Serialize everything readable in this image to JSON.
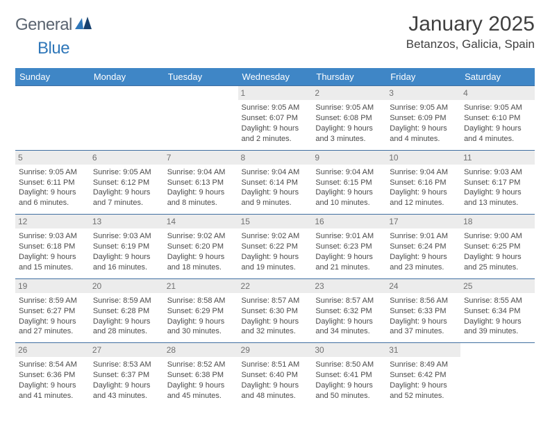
{
  "logo": {
    "text_general": "General",
    "text_blue": "Blue"
  },
  "header": {
    "month_title": "January 2025",
    "location": "Betanzos, Galicia, Spain"
  },
  "colors": {
    "header_bg": "#3f86c6",
    "header_text": "#ffffff",
    "row_border": "#3f6ea0",
    "daynum_bg": "#ececec",
    "daynum_text": "#707070",
    "body_text": "#4a4a4a",
    "logo_gray": "#5a6470",
    "logo_blue": "#2f77b9"
  },
  "daynames": [
    "Sunday",
    "Monday",
    "Tuesday",
    "Wednesday",
    "Thursday",
    "Friday",
    "Saturday"
  ],
  "weeks": [
    [
      null,
      null,
      null,
      {
        "num": "1",
        "sunrise": "Sunrise: 9:05 AM",
        "sunset": "Sunset: 6:07 PM",
        "dl1": "Daylight: 9 hours",
        "dl2": "and 2 minutes."
      },
      {
        "num": "2",
        "sunrise": "Sunrise: 9:05 AM",
        "sunset": "Sunset: 6:08 PM",
        "dl1": "Daylight: 9 hours",
        "dl2": "and 3 minutes."
      },
      {
        "num": "3",
        "sunrise": "Sunrise: 9:05 AM",
        "sunset": "Sunset: 6:09 PM",
        "dl1": "Daylight: 9 hours",
        "dl2": "and 4 minutes."
      },
      {
        "num": "4",
        "sunrise": "Sunrise: 9:05 AM",
        "sunset": "Sunset: 6:10 PM",
        "dl1": "Daylight: 9 hours",
        "dl2": "and 4 minutes."
      }
    ],
    [
      {
        "num": "5",
        "sunrise": "Sunrise: 9:05 AM",
        "sunset": "Sunset: 6:11 PM",
        "dl1": "Daylight: 9 hours",
        "dl2": "and 6 minutes."
      },
      {
        "num": "6",
        "sunrise": "Sunrise: 9:05 AM",
        "sunset": "Sunset: 6:12 PM",
        "dl1": "Daylight: 9 hours",
        "dl2": "and 7 minutes."
      },
      {
        "num": "7",
        "sunrise": "Sunrise: 9:04 AM",
        "sunset": "Sunset: 6:13 PM",
        "dl1": "Daylight: 9 hours",
        "dl2": "and 8 minutes."
      },
      {
        "num": "8",
        "sunrise": "Sunrise: 9:04 AM",
        "sunset": "Sunset: 6:14 PM",
        "dl1": "Daylight: 9 hours",
        "dl2": "and 9 minutes."
      },
      {
        "num": "9",
        "sunrise": "Sunrise: 9:04 AM",
        "sunset": "Sunset: 6:15 PM",
        "dl1": "Daylight: 9 hours",
        "dl2": "and 10 minutes."
      },
      {
        "num": "10",
        "sunrise": "Sunrise: 9:04 AM",
        "sunset": "Sunset: 6:16 PM",
        "dl1": "Daylight: 9 hours",
        "dl2": "and 12 minutes."
      },
      {
        "num": "11",
        "sunrise": "Sunrise: 9:03 AM",
        "sunset": "Sunset: 6:17 PM",
        "dl1": "Daylight: 9 hours",
        "dl2": "and 13 minutes."
      }
    ],
    [
      {
        "num": "12",
        "sunrise": "Sunrise: 9:03 AM",
        "sunset": "Sunset: 6:18 PM",
        "dl1": "Daylight: 9 hours",
        "dl2": "and 15 minutes."
      },
      {
        "num": "13",
        "sunrise": "Sunrise: 9:03 AM",
        "sunset": "Sunset: 6:19 PM",
        "dl1": "Daylight: 9 hours",
        "dl2": "and 16 minutes."
      },
      {
        "num": "14",
        "sunrise": "Sunrise: 9:02 AM",
        "sunset": "Sunset: 6:20 PM",
        "dl1": "Daylight: 9 hours",
        "dl2": "and 18 minutes."
      },
      {
        "num": "15",
        "sunrise": "Sunrise: 9:02 AM",
        "sunset": "Sunset: 6:22 PM",
        "dl1": "Daylight: 9 hours",
        "dl2": "and 19 minutes."
      },
      {
        "num": "16",
        "sunrise": "Sunrise: 9:01 AM",
        "sunset": "Sunset: 6:23 PM",
        "dl1": "Daylight: 9 hours",
        "dl2": "and 21 minutes."
      },
      {
        "num": "17",
        "sunrise": "Sunrise: 9:01 AM",
        "sunset": "Sunset: 6:24 PM",
        "dl1": "Daylight: 9 hours",
        "dl2": "and 23 minutes."
      },
      {
        "num": "18",
        "sunrise": "Sunrise: 9:00 AM",
        "sunset": "Sunset: 6:25 PM",
        "dl1": "Daylight: 9 hours",
        "dl2": "and 25 minutes."
      }
    ],
    [
      {
        "num": "19",
        "sunrise": "Sunrise: 8:59 AM",
        "sunset": "Sunset: 6:27 PM",
        "dl1": "Daylight: 9 hours",
        "dl2": "and 27 minutes."
      },
      {
        "num": "20",
        "sunrise": "Sunrise: 8:59 AM",
        "sunset": "Sunset: 6:28 PM",
        "dl1": "Daylight: 9 hours",
        "dl2": "and 28 minutes."
      },
      {
        "num": "21",
        "sunrise": "Sunrise: 8:58 AM",
        "sunset": "Sunset: 6:29 PM",
        "dl1": "Daylight: 9 hours",
        "dl2": "and 30 minutes."
      },
      {
        "num": "22",
        "sunrise": "Sunrise: 8:57 AM",
        "sunset": "Sunset: 6:30 PM",
        "dl1": "Daylight: 9 hours",
        "dl2": "and 32 minutes."
      },
      {
        "num": "23",
        "sunrise": "Sunrise: 8:57 AM",
        "sunset": "Sunset: 6:32 PM",
        "dl1": "Daylight: 9 hours",
        "dl2": "and 34 minutes."
      },
      {
        "num": "24",
        "sunrise": "Sunrise: 8:56 AM",
        "sunset": "Sunset: 6:33 PM",
        "dl1": "Daylight: 9 hours",
        "dl2": "and 37 minutes."
      },
      {
        "num": "25",
        "sunrise": "Sunrise: 8:55 AM",
        "sunset": "Sunset: 6:34 PM",
        "dl1": "Daylight: 9 hours",
        "dl2": "and 39 minutes."
      }
    ],
    [
      {
        "num": "26",
        "sunrise": "Sunrise: 8:54 AM",
        "sunset": "Sunset: 6:36 PM",
        "dl1": "Daylight: 9 hours",
        "dl2": "and 41 minutes."
      },
      {
        "num": "27",
        "sunrise": "Sunrise: 8:53 AM",
        "sunset": "Sunset: 6:37 PM",
        "dl1": "Daylight: 9 hours",
        "dl2": "and 43 minutes."
      },
      {
        "num": "28",
        "sunrise": "Sunrise: 8:52 AM",
        "sunset": "Sunset: 6:38 PM",
        "dl1": "Daylight: 9 hours",
        "dl2": "and 45 minutes."
      },
      {
        "num": "29",
        "sunrise": "Sunrise: 8:51 AM",
        "sunset": "Sunset: 6:40 PM",
        "dl1": "Daylight: 9 hours",
        "dl2": "and 48 minutes."
      },
      {
        "num": "30",
        "sunrise": "Sunrise: 8:50 AM",
        "sunset": "Sunset: 6:41 PM",
        "dl1": "Daylight: 9 hours",
        "dl2": "and 50 minutes."
      },
      {
        "num": "31",
        "sunrise": "Sunrise: 8:49 AM",
        "sunset": "Sunset: 6:42 PM",
        "dl1": "Daylight: 9 hours",
        "dl2": "and 52 minutes."
      },
      null
    ]
  ]
}
